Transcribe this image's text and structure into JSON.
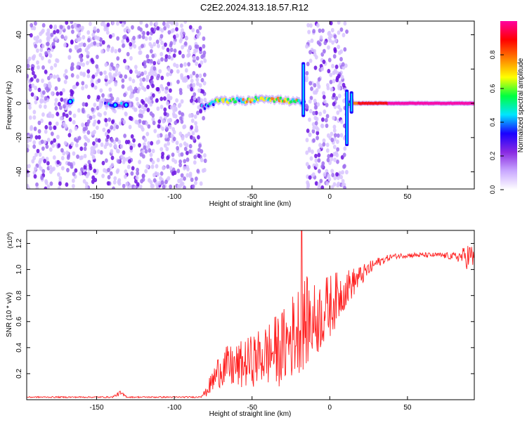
{
  "title": "C2E2.2024.313.18.57.R12",
  "chart_data": [
    {
      "type": "heatmap",
      "xlabel": "Height of straight line (km)",
      "ylabel": "Frequency (Hz)",
      "xlim": [
        -195,
        93
      ],
      "ylim": [
        -50,
        48
      ],
      "xticks": [
        -150,
        -100,
        -50,
        0,
        50
      ],
      "yticks": [
        -40,
        -20,
        0,
        20,
        40
      ],
      "colorbar": {
        "label": "Normalized spectral amplitude",
        "range": [
          0,
          1
        ],
        "ticks": [
          0.0,
          0.2,
          0.4,
          0.6,
          0.8
        ],
        "colors": [
          "#ffffff",
          "#c9a8ff",
          "#8a2be2",
          "#1a00ff",
          "#00e5ff",
          "#00ff40",
          "#ffff00",
          "#ff8000",
          "#ff0000",
          "#ff00a0"
        ]
      },
      "noise_regions_km": [
        [
          -195,
          -80
        ],
        [
          -15,
          11
        ]
      ],
      "signal_trace": {
        "x": [
          -167,
          -140,
          -130,
          -80,
          -75,
          -70,
          -65,
          -60,
          -55,
          -50,
          -45,
          -40,
          -35,
          -30,
          -25,
          -20,
          -17,
          15,
          20,
          40,
          60,
          80,
          93
        ],
        "freq_hz": [
          1,
          -1,
          -1,
          -2,
          0,
          2,
          1,
          2,
          1,
          2,
          3,
          3,
          2,
          2,
          1,
          1,
          0,
          0,
          0,
          0,
          0,
          0,
          0
        ],
        "amplitude": [
          0.45,
          0.45,
          0.4,
          0.5,
          0.6,
          0.7,
          0.75,
          0.7,
          0.75,
          0.8,
          0.75,
          0.8,
          0.85,
          0.85,
          0.8,
          0.75,
          0.6,
          0.7,
          0.9,
          0.95,
          1.0,
          1.0,
          1.0
        ]
      },
      "vertical_features_km": [
        {
          "x": -17,
          "freq_range": [
            -8,
            24
          ]
        },
        {
          "x": 11,
          "freq_range": [
            -25,
            8
          ]
        },
        {
          "x": 14,
          "freq_range": [
            -6,
            7
          ]
        }
      ]
    },
    {
      "type": "line",
      "xlabel": "Height of straight line (km)",
      "ylabel": "SNR (10 * v/v)",
      "y_multiplier": "(x10",
      "y_multiplier_exp": "4",
      "y_multiplier_close": ")",
      "xlim": [
        -195,
        93
      ],
      "ylim": [
        0,
        1.3
      ],
      "xticks": [
        -150,
        -100,
        -50,
        0,
        50
      ],
      "yticks": [
        0.2,
        0.4,
        0.6,
        0.8,
        1.0,
        1.2
      ],
      "series_color": "#ff2020",
      "envelope": {
        "x": [
          -195,
          -140,
          -135,
          -130,
          -85,
          -80,
          -75,
          -70,
          -60,
          -50,
          -40,
          -30,
          -20,
          -15,
          -10,
          0,
          10,
          20,
          30,
          40,
          50,
          60,
          70,
          80,
          85,
          90,
          93
        ],
        "y": [
          0.02,
          0.02,
          0.05,
          0.02,
          0.02,
          0.05,
          0.15,
          0.25,
          0.25,
          0.3,
          0.35,
          0.4,
          0.55,
          0.6,
          0.6,
          0.72,
          0.85,
          0.95,
          1.05,
          1.1,
          1.11,
          1.11,
          1.11,
          1.1,
          1.1,
          1.1,
          1.08
        ],
        "noise": [
          0.005,
          0.005,
          0.02,
          0.005,
          0.005,
          0.03,
          0.1,
          0.15,
          0.18,
          0.2,
          0.25,
          0.3,
          0.35,
          0.35,
          0.3,
          0.25,
          0.15,
          0.08,
          0.04,
          0.02,
          0.02,
          0.02,
          0.02,
          0.03,
          0.06,
          0.12,
          0.08
        ]
      },
      "spike": {
        "x": -18,
        "y": 1.3
      }
    }
  ]
}
